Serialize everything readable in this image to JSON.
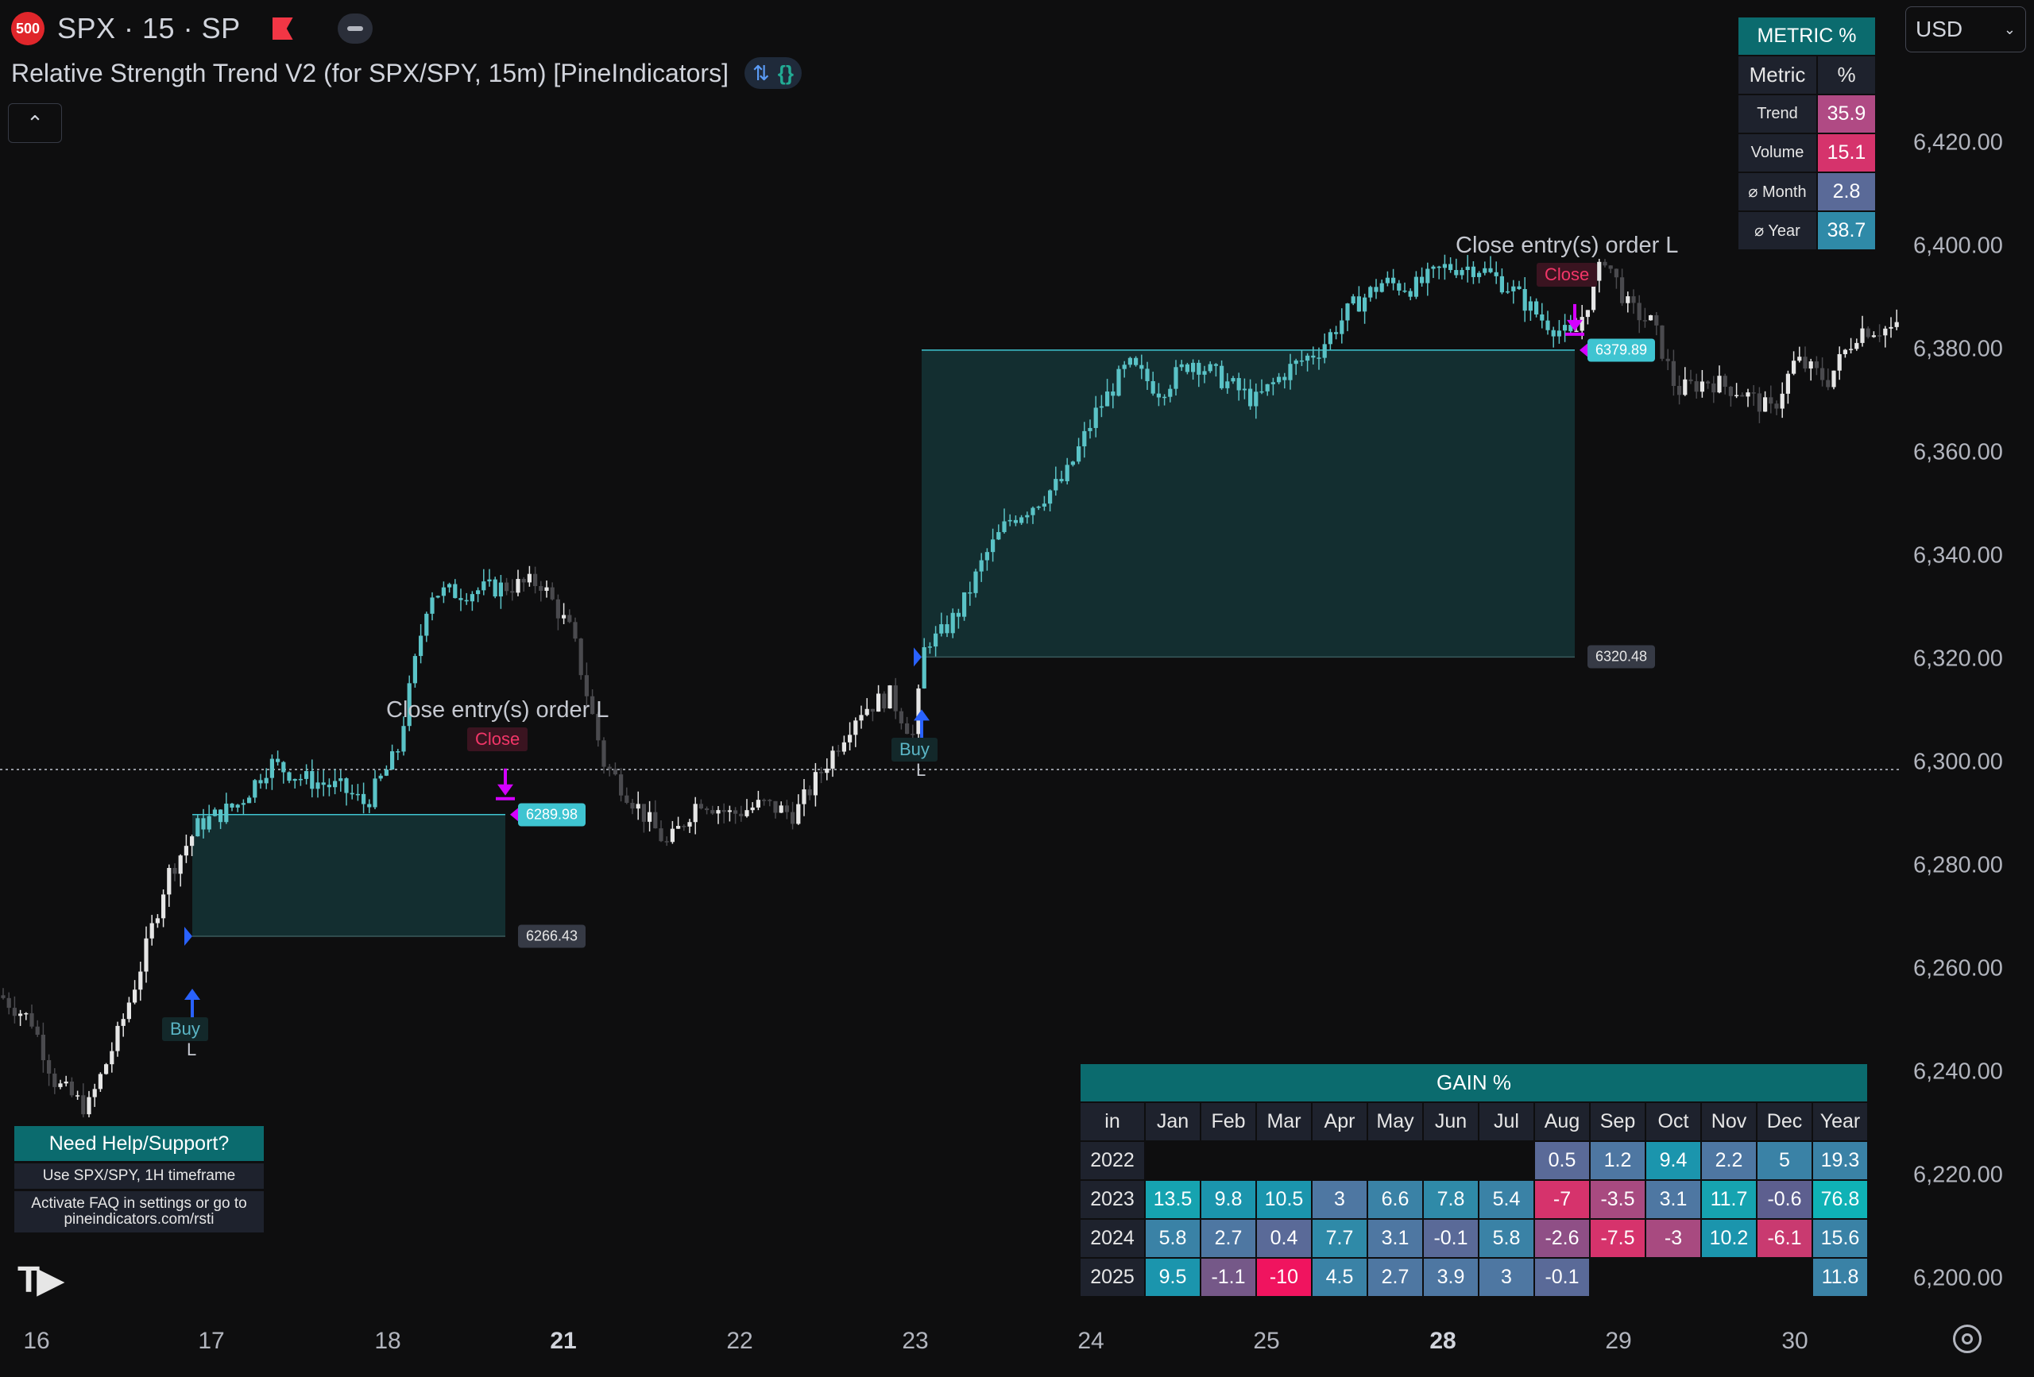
{
  "header": {
    "symbol_badge": "500",
    "symbol": "SPX · 15 · SP",
    "indicator_title": "Relative Strength Trend V2 (for SPX/SPY, 15m) [PineIndicators]",
    "currency": "USD"
  },
  "price_axis": {
    "ticks": [
      "6,420.00",
      "6,400.00",
      "6,380.00",
      "6,360.00",
      "6,340.00",
      "6,320.00",
      "6,300.00",
      "6,280.00",
      "6,260.00",
      "6,240.00",
      "6,220.00",
      "6,200.00"
    ]
  },
  "date_axis": {
    "ticks": [
      "16",
      "17",
      "18",
      "21",
      "22",
      "23",
      "24",
      "25",
      "28",
      "29",
      "30"
    ],
    "bold": [
      "21",
      "28"
    ]
  },
  "trades": [
    {
      "entry": 6266.43,
      "exit": 6289.98,
      "entry_label": "6266.43",
      "exit_label": "6289.98",
      "buy_text": "Buy",
      "leg": "L",
      "close_text": "Close",
      "order_text": "Close entry(s) order L"
    },
    {
      "entry": 6320.48,
      "exit": 6379.89,
      "entry_label": "6320.48",
      "exit_label": "6379.89",
      "buy_text": "Buy",
      "leg": "L",
      "close_text": "Close",
      "order_text": "Close entry(s) order L"
    }
  ],
  "metric_table": {
    "title": "METRIC %",
    "col_metric": "Metric",
    "col_pct": "%",
    "rows": [
      {
        "label": "Trend",
        "value": "35.9",
        "color": "#b04a84"
      },
      {
        "label": "Volume",
        "value": "15.1",
        "color": "#d6336c"
      },
      {
        "label": "⌀ Month",
        "value": "2.8",
        "color": "#5a6a98"
      },
      {
        "label": "⌀ Year",
        "value": "38.7",
        "color": "#2f8aa8"
      }
    ]
  },
  "gain_table": {
    "title": "GAIN %",
    "headers": [
      "in",
      "Jan",
      "Feb",
      "Mar",
      "Apr",
      "May",
      "Jun",
      "Jul",
      "Aug",
      "Sep",
      "Oct",
      "Nov",
      "Dec",
      "Year"
    ],
    "rows": [
      {
        "year": "2022",
        "cells": [
          {
            "v": "",
            "c": ""
          },
          {
            "v": "",
            "c": ""
          },
          {
            "v": "",
            "c": ""
          },
          {
            "v": "",
            "c": ""
          },
          {
            "v": "",
            "c": ""
          },
          {
            "v": "",
            "c": ""
          },
          {
            "v": "",
            "c": ""
          },
          {
            "v": "0.5",
            "c": "#5a6a98"
          },
          {
            "v": "1.2",
            "c": "#4e77a2"
          },
          {
            "v": "9.4",
            "c": "#1b95ad"
          },
          {
            "v": "2.2",
            "c": "#4e77a2"
          },
          {
            "v": "5",
            "c": "#3a82a6"
          },
          {
            "v": "19.3",
            "c": "#3a82a6"
          }
        ]
      },
      {
        "year": "2023",
        "cells": [
          {
            "v": "13.5",
            "c": "#16a3b0"
          },
          {
            "v": "9.8",
            "c": "#1b95ad"
          },
          {
            "v": "10.5",
            "c": "#1b95ad"
          },
          {
            "v": "3",
            "c": "#4e77a2"
          },
          {
            "v": "6.6",
            "c": "#3a82a6"
          },
          {
            "v": "7.8",
            "c": "#2f8aa8"
          },
          {
            "v": "5.4",
            "c": "#3a82a6"
          },
          {
            "v": "-7",
            "c": "#d6336c"
          },
          {
            "v": "-3.5",
            "c": "#a84a80"
          },
          {
            "v": "3.1",
            "c": "#4e77a2"
          },
          {
            "v": "11.7",
            "c": "#16a3b0"
          },
          {
            "v": "-0.6",
            "c": "#5d5f8f"
          },
          {
            "v": "76.8",
            "c": "#0fb2b6"
          }
        ]
      },
      {
        "year": "2024",
        "cells": [
          {
            "v": "5.8",
            "c": "#3a82a6"
          },
          {
            "v": "2.7",
            "c": "#4e77a2"
          },
          {
            "v": "0.4",
            "c": "#5a6a98"
          },
          {
            "v": "7.7",
            "c": "#2f8aa8"
          },
          {
            "v": "3.1",
            "c": "#4e77a2"
          },
          {
            "v": "-0.1",
            "c": "#5a6a98"
          },
          {
            "v": "5.8",
            "c": "#3a82a6"
          },
          {
            "v": "-2.6",
            "c": "#8f4f86"
          },
          {
            "v": "-7.5",
            "c": "#d6336c"
          },
          {
            "v": "-3",
            "c": "#a84a80"
          },
          {
            "v": "10.2",
            "c": "#1b95ad"
          },
          {
            "v": "-6.1",
            "c": "#c93a70"
          },
          {
            "v": "15.6",
            "c": "#3a82a6"
          }
        ]
      },
      {
        "year": "2025",
        "cells": [
          {
            "v": "9.5",
            "c": "#1b95ad"
          },
          {
            "v": "-1.1",
            "c": "#755888"
          },
          {
            "v": "-10",
            "c": "#f0145f"
          },
          {
            "v": "4.5",
            "c": "#3a82a6"
          },
          {
            "v": "2.7",
            "c": "#4e77a2"
          },
          {
            "v": "3.9",
            "c": "#4e77a2"
          },
          {
            "v": "3",
            "c": "#4e77a2"
          },
          {
            "v": "-0.1",
            "c": "#5a6a98"
          },
          {
            "v": "",
            "c": ""
          },
          {
            "v": "",
            "c": ""
          },
          {
            "v": "",
            "c": ""
          },
          {
            "v": "",
            "c": ""
          },
          {
            "v": "11.8",
            "c": "#3a82a6"
          }
        ]
      }
    ]
  },
  "help": {
    "title": "Need Help/Support?",
    "line1": "Use SPX/SPY, 1H timeframe",
    "line2": "Activate FAQ in settings or go to pineindicators.com/rsti"
  },
  "colors": {
    "bull": "#5ac3c7",
    "neutral": "#e6e6e6",
    "bear": "#4a4a4e",
    "zone_fill": "#143436",
    "zone_line": "#3fc4d1",
    "close_arrow": "#d400ff",
    "buy_arrow": "#2962ff"
  }
}
